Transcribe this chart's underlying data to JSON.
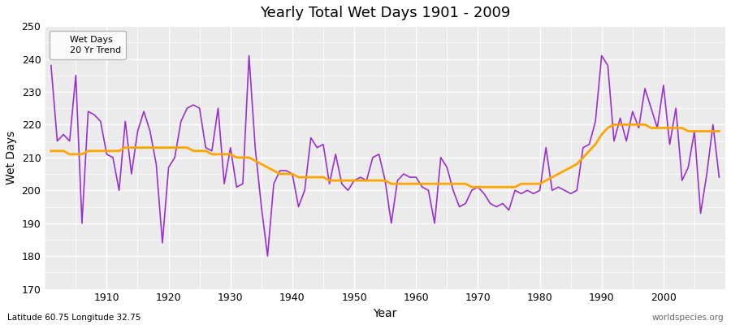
{
  "title": "Yearly Total Wet Days 1901 - 2009",
  "xlabel": "Year",
  "ylabel": "Wet Days",
  "lat_lon_label": "Latitude 60.75 Longitude 32.75",
  "watermark": "worldspecies.org",
  "ylim": [
    170,
    250
  ],
  "yticks": [
    170,
    180,
    190,
    200,
    210,
    220,
    230,
    240,
    250
  ],
  "wet_days_color": "#9B30D0",
  "trend_color": "#FFA500",
  "plot_bg_color": "#EBEBEB",
  "fig_bg_color": "#FFFFFF",
  "years": [
    1901,
    1902,
    1903,
    1904,
    1905,
    1906,
    1907,
    1908,
    1909,
    1910,
    1911,
    1912,
    1913,
    1914,
    1915,
    1916,
    1917,
    1918,
    1919,
    1920,
    1921,
    1922,
    1923,
    1924,
    1925,
    1926,
    1927,
    1928,
    1929,
    1930,
    1931,
    1932,
    1933,
    1934,
    1935,
    1936,
    1937,
    1938,
    1939,
    1940,
    1941,
    1942,
    1943,
    1944,
    1945,
    1946,
    1947,
    1948,
    1949,
    1950,
    1951,
    1952,
    1953,
    1954,
    1955,
    1956,
    1957,
    1958,
    1959,
    1960,
    1961,
    1962,
    1963,
    1964,
    1965,
    1966,
    1967,
    1968,
    1969,
    1970,
    1971,
    1972,
    1973,
    1974,
    1975,
    1976,
    1977,
    1978,
    1979,
    1980,
    1981,
    1982,
    1983,
    1984,
    1985,
    1986,
    1987,
    1988,
    1989,
    1990,
    1991,
    1992,
    1993,
    1994,
    1995,
    1996,
    1997,
    1998,
    1999,
    2000,
    2001,
    2002,
    2003,
    2004,
    2005,
    2006,
    2007,
    2008,
    2009
  ],
  "wet_days": [
    238,
    215,
    217,
    215,
    235,
    190,
    224,
    223,
    221,
    211,
    210,
    200,
    221,
    205,
    218,
    224,
    218,
    208,
    184,
    207,
    210,
    221,
    225,
    226,
    225,
    213,
    212,
    225,
    202,
    213,
    201,
    202,
    241,
    213,
    195,
    180,
    202,
    206,
    206,
    205,
    195,
    200,
    216,
    213,
    214,
    202,
    211,
    202,
    200,
    203,
    204,
    203,
    210,
    211,
    203,
    190,
    203,
    205,
    204,
    204,
    201,
    200,
    190,
    210,
    207,
    200,
    195,
    196,
    200,
    201,
    199,
    196,
    195,
    196,
    194,
    200,
    199,
    200,
    199,
    200,
    213,
    200,
    201,
    200,
    199,
    200,
    213,
    214,
    221,
    241,
    238,
    215,
    222,
    215,
    224,
    219,
    231,
    225,
    219,
    232,
    214,
    225,
    203,
    207,
    218,
    193,
    205,
    220,
    204
  ],
  "trend": [
    212,
    212,
    212,
    211,
    211,
    211,
    212,
    212,
    212,
    212,
    212,
    212,
    213,
    213,
    213,
    213,
    213,
    213,
    213,
    213,
    213,
    213,
    213,
    212,
    212,
    212,
    211,
    211,
    211,
    211,
    210,
    210,
    210,
    209,
    208,
    207,
    206,
    205,
    205,
    205,
    204,
    204,
    204,
    204,
    204,
    203,
    203,
    203,
    203,
    203,
    203,
    203,
    203,
    203,
    203,
    202,
    202,
    202,
    202,
    202,
    202,
    202,
    202,
    202,
    202,
    202,
    202,
    202,
    201,
    201,
    201,
    201,
    201,
    201,
    201,
    201,
    202,
    202,
    202,
    202,
    203,
    204,
    205,
    206,
    207,
    208,
    210,
    212,
    214,
    217,
    219,
    220,
    220,
    220,
    220,
    220,
    220,
    219,
    219,
    219,
    219,
    219,
    219,
    218,
    218,
    218,
    218,
    218,
    218
  ]
}
